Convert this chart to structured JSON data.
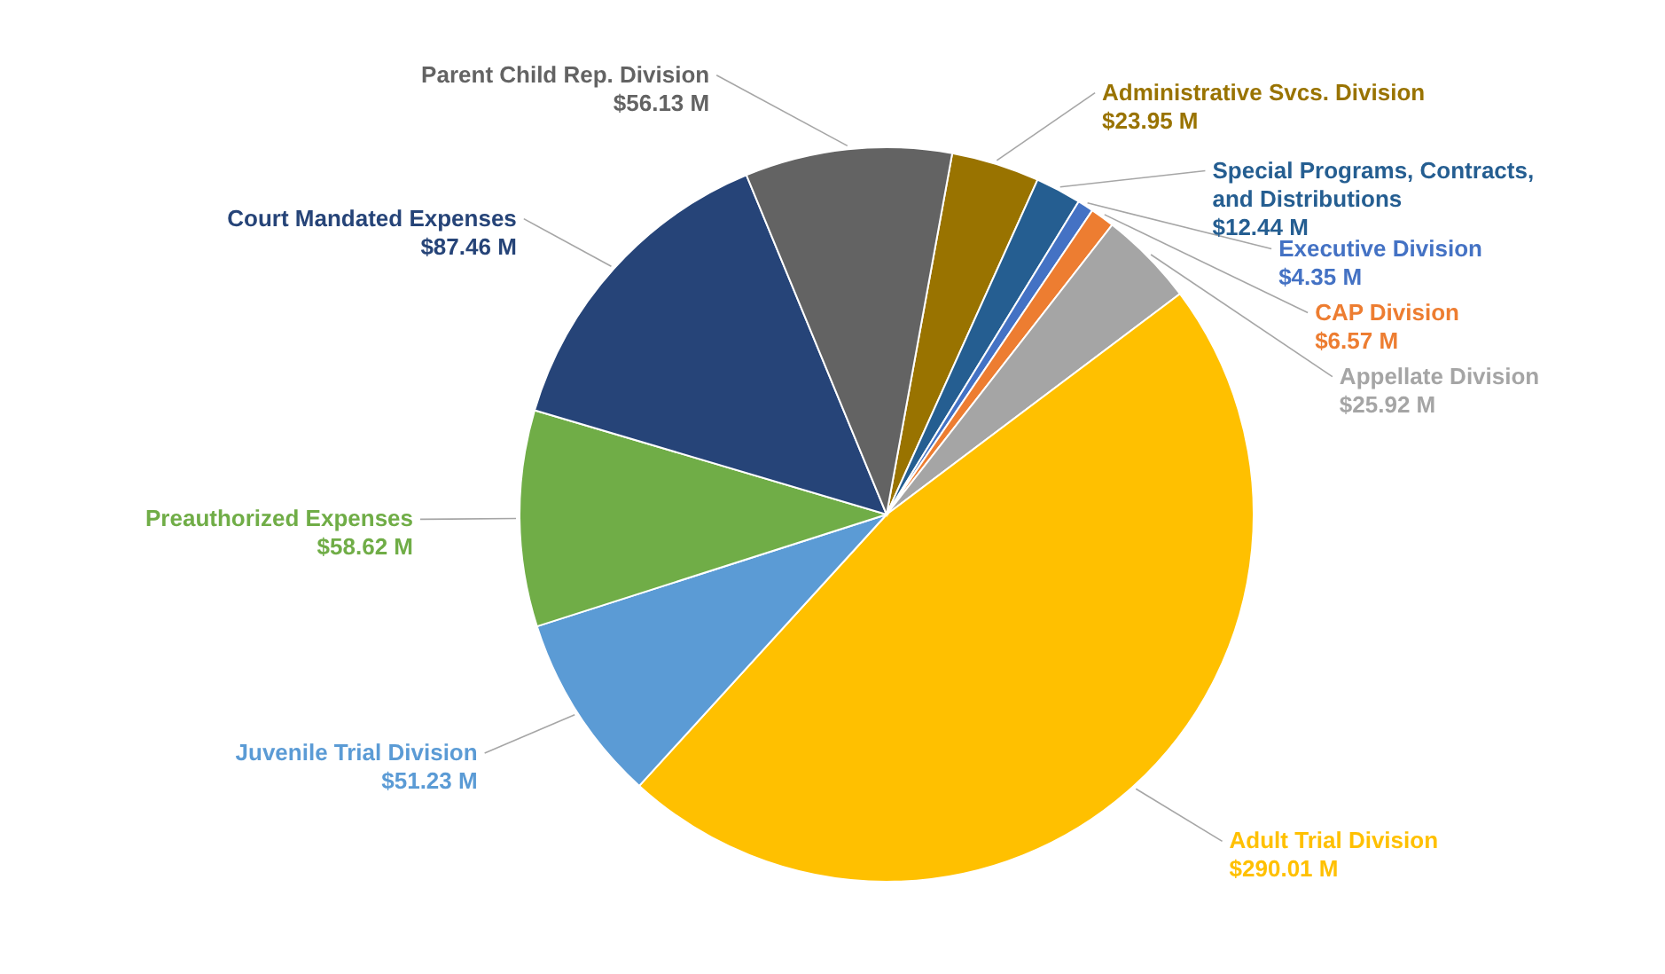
{
  "chart_data": {
    "type": "pie",
    "categories": [
      "Administrative Svcs. Division",
      "Special Programs, Contracts, and Distributions",
      "Executive Division",
      "CAP Division",
      "Appellate Division",
      "Adult Trial Division",
      "Juvenile Trial Division",
      "Preauthorized Expenses",
      "Court Mandated Expenses",
      "Parent Child Rep. Division"
    ],
    "values": [
      23.95,
      12.44,
      4.35,
      6.57,
      25.92,
      290.01,
      51.23,
      58.62,
      87.46,
      56.13
    ],
    "colors": [
      "#997300",
      "#255e91",
      "#4472c4",
      "#ed7d31",
      "#a5a5a5",
      "#ffc000",
      "#5b9bd5",
      "#70ad47",
      "#264478",
      "#636363"
    ],
    "value_labels": [
      "$23.95 M",
      "$12.44 M",
      "$4.35 M",
      "$6.57 M",
      "$25.92 M",
      "$290.01 M",
      "$51.23 M",
      "$58.62 M",
      "$87.46 M",
      "$56.13 M"
    ]
  }
}
